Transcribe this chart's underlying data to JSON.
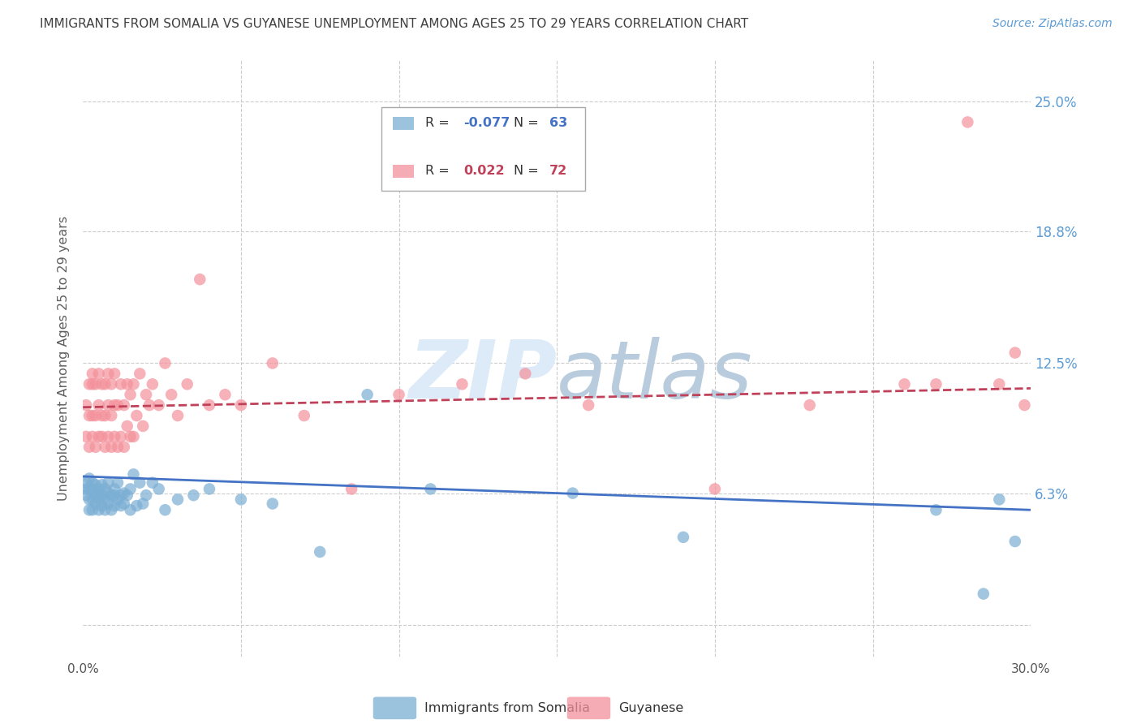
{
  "title": "IMMIGRANTS FROM SOMALIA VS GUYANESE UNEMPLOYMENT AMONG AGES 25 TO 29 YEARS CORRELATION CHART",
  "source": "Source: ZipAtlas.com",
  "ylabel": "Unemployment Among Ages 25 to 29 years",
  "xlim": [
    0.0,
    0.3
  ],
  "ylim": [
    -0.015,
    0.27
  ],
  "ytick_positions": [
    0.0,
    0.063,
    0.125,
    0.188,
    0.25
  ],
  "ytick_labels": [
    "",
    "6.3%",
    "12.5%",
    "18.8%",
    "25.0%"
  ],
  "xtick_positions": [
    0.0,
    0.05,
    0.1,
    0.15,
    0.2,
    0.25,
    0.3
  ],
  "xtick_labels": [
    "0.0%",
    "",
    "",
    "",
    "",
    "",
    "30.0%"
  ],
  "somalia_R": -0.077,
  "somalia_N": 63,
  "guyanese_R": 0.022,
  "guyanese_N": 72,
  "somalia_color": "#7BAFD4",
  "guyanese_color": "#F4919B",
  "somalia_line_color": "#4472C4",
  "guyanese_line_color": "#C0415A",
  "background_color": "#FFFFFF",
  "grid_color": "#CCCCCC",
  "right_tick_color": "#5B9BD5",
  "title_color": "#404040",
  "axis_label_color": "#606060",
  "source_color": "#5B9BD5",
  "watermark_zip_color": "#DDEAF7",
  "watermark_atlas_color": "#B8CCDD",
  "somalia_x": [
    0.001,
    0.001,
    0.001,
    0.002,
    0.002,
    0.002,
    0.002,
    0.003,
    0.003,
    0.003,
    0.003,
    0.004,
    0.004,
    0.004,
    0.005,
    0.005,
    0.005,
    0.005,
    0.006,
    0.006,
    0.006,
    0.007,
    0.007,
    0.007,
    0.008,
    0.008,
    0.008,
    0.009,
    0.009,
    0.01,
    0.01,
    0.01,
    0.011,
    0.011,
    0.012,
    0.012,
    0.013,
    0.013,
    0.014,
    0.015,
    0.015,
    0.016,
    0.017,
    0.018,
    0.019,
    0.02,
    0.022,
    0.024,
    0.026,
    0.03,
    0.035,
    0.04,
    0.05,
    0.06,
    0.075,
    0.09,
    0.11,
    0.155,
    0.19,
    0.27,
    0.285,
    0.29,
    0.295
  ],
  "somalia_y": [
    0.062,
    0.065,
    0.068,
    0.055,
    0.06,
    0.065,
    0.07,
    0.055,
    0.06,
    0.065,
    0.068,
    0.058,
    0.062,
    0.067,
    0.055,
    0.06,
    0.062,
    0.065,
    0.057,
    0.062,
    0.067,
    0.055,
    0.06,
    0.065,
    0.058,
    0.063,
    0.068,
    0.055,
    0.062,
    0.057,
    0.062,
    0.065,
    0.06,
    0.068,
    0.057,
    0.062,
    0.058,
    0.063,
    0.062,
    0.055,
    0.065,
    0.072,
    0.057,
    0.068,
    0.058,
    0.062,
    0.068,
    0.065,
    0.055,
    0.06,
    0.062,
    0.065,
    0.06,
    0.058,
    0.035,
    0.11,
    0.065,
    0.063,
    0.042,
    0.055,
    0.015,
    0.06,
    0.04
  ],
  "guyanese_x": [
    0.001,
    0.001,
    0.002,
    0.002,
    0.002,
    0.003,
    0.003,
    0.003,
    0.003,
    0.004,
    0.004,
    0.004,
    0.005,
    0.005,
    0.005,
    0.006,
    0.006,
    0.006,
    0.007,
    0.007,
    0.007,
    0.008,
    0.008,
    0.008,
    0.009,
    0.009,
    0.009,
    0.01,
    0.01,
    0.01,
    0.011,
    0.011,
    0.012,
    0.012,
    0.013,
    0.013,
    0.014,
    0.014,
    0.015,
    0.015,
    0.016,
    0.016,
    0.017,
    0.018,
    0.019,
    0.02,
    0.021,
    0.022,
    0.024,
    0.026,
    0.028,
    0.03,
    0.033,
    0.037,
    0.04,
    0.045,
    0.05,
    0.06,
    0.07,
    0.085,
    0.1,
    0.12,
    0.14,
    0.16,
    0.2,
    0.23,
    0.26,
    0.27,
    0.28,
    0.29,
    0.295,
    0.298
  ],
  "guyanese_y": [
    0.09,
    0.105,
    0.085,
    0.1,
    0.115,
    0.09,
    0.1,
    0.115,
    0.12,
    0.085,
    0.1,
    0.115,
    0.09,
    0.105,
    0.12,
    0.09,
    0.1,
    0.115,
    0.085,
    0.1,
    0.115,
    0.09,
    0.105,
    0.12,
    0.085,
    0.1,
    0.115,
    0.09,
    0.105,
    0.12,
    0.085,
    0.105,
    0.09,
    0.115,
    0.085,
    0.105,
    0.095,
    0.115,
    0.09,
    0.11,
    0.09,
    0.115,
    0.1,
    0.12,
    0.095,
    0.11,
    0.105,
    0.115,
    0.105,
    0.125,
    0.11,
    0.1,
    0.115,
    0.165,
    0.105,
    0.11,
    0.105,
    0.125,
    0.1,
    0.065,
    0.11,
    0.115,
    0.12,
    0.105,
    0.065,
    0.105,
    0.115,
    0.115,
    0.24,
    0.115,
    0.13,
    0.105
  ],
  "som_line_x0": 0.0,
  "som_line_y0": 0.071,
  "som_line_x1": 0.3,
  "som_line_y1": 0.055,
  "guy_line_x0": 0.0,
  "guy_line_y0": 0.104,
  "guy_line_x1": 0.3,
  "guy_line_y1": 0.113
}
